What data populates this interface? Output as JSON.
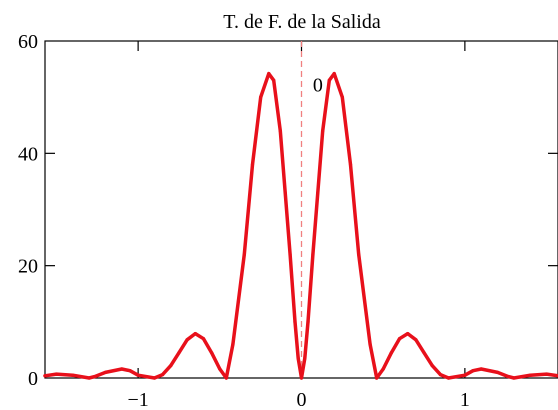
{
  "chart_data": {
    "type": "line",
    "title": "T. de F. de la Salida",
    "xlabel": "",
    "ylabel": "",
    "xlim": [
      -1.57,
      1.57
    ],
    "ylim": [
      0,
      60
    ],
    "x_ticks": [
      {
        "value": -1,
        "label": "−1"
      },
      {
        "value": 0,
        "label": "0"
      },
      {
        "value": 1,
        "label": "1"
      }
    ],
    "y_ticks": [
      {
        "value": 0,
        "label": "0"
      },
      {
        "value": 20,
        "label": "20"
      },
      {
        "value": 40,
        "label": "40"
      },
      {
        "value": 60,
        "label": "60"
      }
    ],
    "grid": false,
    "series": [
      {
        "color": "#e8101b",
        "x": [
          -1.57,
          -1.5,
          -1.4,
          -1.3,
          -1.26,
          -1.2,
          -1.1,
          -1.05,
          -1.0,
          -0.9,
          -0.85,
          -0.8,
          -0.75,
          -0.7,
          -0.65,
          -0.6,
          -0.55,
          -0.5,
          -0.46,
          -0.42,
          -0.35,
          -0.3,
          -0.25,
          -0.2,
          -0.17,
          -0.13,
          -0.1,
          -0.07,
          -0.04,
          -0.02,
          0.0,
          0.02,
          0.04,
          0.07,
          0.1,
          0.13,
          0.17,
          0.2,
          0.25,
          0.3,
          0.35,
          0.42,
          0.46,
          0.5,
          0.55,
          0.6,
          0.65,
          0.7,
          0.75,
          0.8,
          0.85,
          0.9,
          1.0,
          1.05,
          1.1,
          1.2,
          1.26,
          1.3,
          1.4,
          1.5,
          1.57
        ],
        "y": [
          0.4,
          0.7,
          0.5,
          0.0,
          0.3,
          1.0,
          1.6,
          1.3,
          0.5,
          0.0,
          0.6,
          2.2,
          4.5,
          6.8,
          7.9,
          7.0,
          4.5,
          1.6,
          0.0,
          6.0,
          22.0,
          38.0,
          50.0,
          54.2,
          53.0,
          44.0,
          33.0,
          22.0,
          10.0,
          3.5,
          0.0,
          3.5,
          10.0,
          22.0,
          33.0,
          44.0,
          53.0,
          54.2,
          50.0,
          38.0,
          22.0,
          6.0,
          0.0,
          1.6,
          4.5,
          7.0,
          7.9,
          6.8,
          4.5,
          2.2,
          0.6,
          0.0,
          0.5,
          1.3,
          1.6,
          1.0,
          0.3,
          0.0,
          0.5,
          0.7,
          0.4
        ]
      }
    ],
    "reference_line": {
      "x": 0,
      "color": "#f08080",
      "style": "dashed"
    },
    "annotations": [
      {
        "text": "0",
        "x": 0.1,
        "y": 51
      }
    ]
  }
}
